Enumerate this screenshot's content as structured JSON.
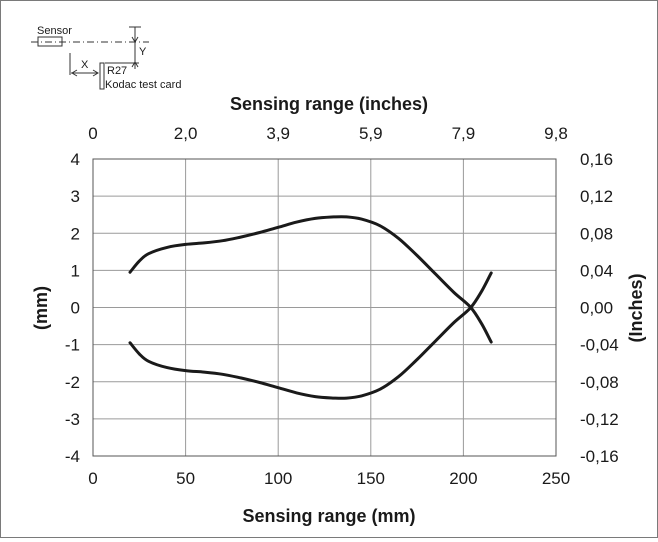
{
  "inset": {
    "sensor_label": "Sensor",
    "x_label": "X",
    "y_label": "Y",
    "reflector_label": "R27",
    "card_label": "Kodac test card"
  },
  "chart_data": {
    "type": "line",
    "xlabel": "Sensing range (mm)",
    "ylabel": "(mm)",
    "x2label": "Sensing range (inches)",
    "y2label": "(Inches)",
    "xlim": [
      0,
      250
    ],
    "ylim": [
      -4,
      4
    ],
    "grid": true,
    "x_ticks": [
      "0",
      "50",
      "100",
      "150",
      "200",
      "250"
    ],
    "y_ticks": [
      "4",
      "3",
      "2",
      "1",
      "0",
      "-1",
      "-2",
      "-3",
      "-4"
    ],
    "x2_ticks": [
      "0",
      "2,0",
      "3,9",
      "5,9",
      "7,9",
      "9,8"
    ],
    "y2_ticks": [
      "0,16",
      "0,12",
      "0,08",
      "0,04",
      "0,00",
      "-0,04",
      "-0,08",
      "-0,12",
      "-0,16"
    ],
    "series": [
      {
        "x": [
          20,
          25,
          30,
          40,
          50,
          60,
          70,
          80,
          90,
          100,
          110,
          120,
          130,
          137,
          145,
          155,
          165,
          175,
          185,
          195,
          204,
          210,
          215
        ],
        "y": [
          0.95,
          1.25,
          1.45,
          1.62,
          1.7,
          1.74,
          1.8,
          1.9,
          2.02,
          2.16,
          2.3,
          2.4,
          2.44,
          2.44,
          2.38,
          2.2,
          1.86,
          1.4,
          0.9,
          0.4,
          0.0,
          -0.45,
          -0.93
        ]
      },
      {
        "x": [
          20,
          25,
          30,
          40,
          50,
          60,
          70,
          80,
          90,
          100,
          110,
          120,
          130,
          137,
          145,
          155,
          165,
          175,
          185,
          195,
          204,
          210,
          215
        ],
        "y": [
          -0.95,
          -1.25,
          -1.45,
          -1.62,
          -1.7,
          -1.74,
          -1.8,
          -1.9,
          -2.02,
          -2.16,
          -2.3,
          -2.4,
          -2.44,
          -2.44,
          -2.38,
          -2.2,
          -1.86,
          -1.4,
          -0.9,
          -0.4,
          0.0,
          0.45,
          0.93
        ]
      }
    ]
  }
}
